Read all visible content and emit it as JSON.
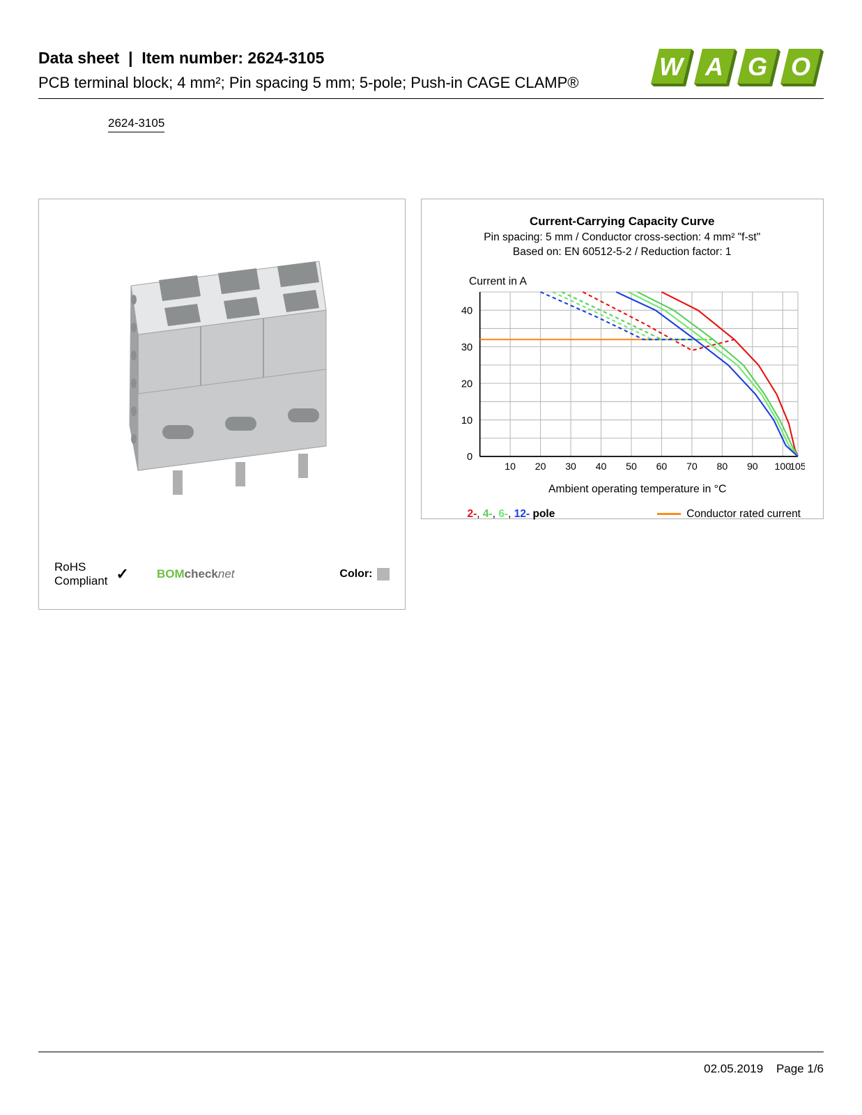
{
  "header": {
    "title_prefix": "Data sheet",
    "title_sep": "|",
    "title_item_label": "Item number:",
    "item_number": "2624-3105",
    "subtitle": "PCB terminal block; 4 mm²; Pin spacing 5 mm; 5-pole; Push-in CAGE CLAMP®",
    "ref": "2624-3105"
  },
  "logo": {
    "text": "WAGO",
    "box_fill": "#7fb51d",
    "letter_fill": "#ffffff",
    "shadow": "#4e7a10"
  },
  "product_render": {
    "body_color": "#c8cacb",
    "edge_shadow": "#9fa2a4",
    "hole_dark": "#8c8f90",
    "hole_light": "#e6e7e8",
    "pin_color": "#adafb1"
  },
  "badges": {
    "rohs_line1": "RoHS",
    "rohs_line2": "Compliant",
    "bom_text": "BOM",
    "bom_check": "check",
    "bom_net": "net",
    "bom_color": "#6fbf44",
    "color_label": "Color:",
    "color_value": "#b4b6b7"
  },
  "chart": {
    "title": "Current-Carrying Capacity Curve",
    "sub1": "Pin spacing: 5 mm / Conductor cross-section: 4 mm² \"f-st\"",
    "sub2": "Based on: EN 60512-5-2 / Reduction factor: 1",
    "ylabel": "Current in A",
    "xlabel": "Ambient operating temperature in °C",
    "x_ticks": [
      10,
      20,
      30,
      40,
      50,
      60,
      70,
      80,
      90,
      100,
      105
    ],
    "y_ticks": [
      0,
      10,
      20,
      30,
      40
    ],
    "xlim": [
      0,
      105
    ],
    "ylim": [
      0,
      45
    ],
    "grid_color": "#b8b8b8",
    "axis_color": "#000000",
    "conductor_line": {
      "y": 32,
      "color": "#ff8a1c",
      "width": 2
    },
    "curves": [
      {
        "name": "2-pole",
        "color": "#e91010",
        "width": 2,
        "solid": [
          [
            60,
            45
          ],
          [
            72,
            40
          ],
          [
            84,
            32
          ],
          [
            92,
            25
          ],
          [
            98,
            17
          ],
          [
            102,
            9
          ],
          [
            104,
            2
          ],
          [
            105,
            0
          ]
        ],
        "dashed": [
          [
            34,
            45
          ],
          [
            55,
            36
          ],
          [
            70,
            29
          ],
          [
            84,
            32
          ]
        ]
      },
      {
        "name": "4-pole",
        "color": "#5ad05a",
        "width": 2,
        "solid": [
          [
            52,
            45
          ],
          [
            64,
            40
          ],
          [
            77,
            32
          ],
          [
            87,
            25
          ],
          [
            94,
            17
          ],
          [
            99,
            10
          ],
          [
            103,
            3
          ],
          [
            105,
            0
          ]
        ],
        "dashed": [
          [
            27,
            45
          ],
          [
            45,
            38
          ],
          [
            60,
            32
          ],
          [
            77,
            32
          ]
        ]
      },
      {
        "name": "6-pole",
        "color": "#6fe86f",
        "width": 2,
        "solid": [
          [
            49,
            45
          ],
          [
            61,
            40
          ],
          [
            74,
            32
          ],
          [
            85,
            25
          ],
          [
            93,
            17
          ],
          [
            98,
            10
          ],
          [
            102,
            3
          ],
          [
            105,
            0
          ]
        ],
        "dashed": [
          [
            24,
            45
          ],
          [
            42,
            38
          ],
          [
            57,
            32
          ],
          [
            74,
            32
          ]
        ]
      },
      {
        "name": "12-pole",
        "color": "#1a3fe0",
        "width": 2,
        "solid": [
          [
            45,
            45
          ],
          [
            58,
            40
          ],
          [
            71,
            32
          ],
          [
            82,
            25
          ],
          [
            91,
            17
          ],
          [
            97,
            10
          ],
          [
            101,
            3
          ],
          [
            105,
            0
          ]
        ],
        "dashed": [
          [
            20,
            45
          ],
          [
            39,
            38
          ],
          [
            54,
            32
          ],
          [
            71,
            32
          ]
        ]
      }
    ],
    "legend_poles": [
      {
        "text": "2-",
        "color": "#e91010"
      },
      {
        "text": "4-",
        "color": "#5ad05a"
      },
      {
        "text": "6-",
        "color": "#6fe86f"
      },
      {
        "text": "12-",
        "color": "#1a3fe0"
      }
    ],
    "legend_pole_suffix": " pole",
    "legend_cond": "Conductor rated current"
  },
  "footer": {
    "date": "02.05.2019",
    "page": "Page 1/6"
  }
}
